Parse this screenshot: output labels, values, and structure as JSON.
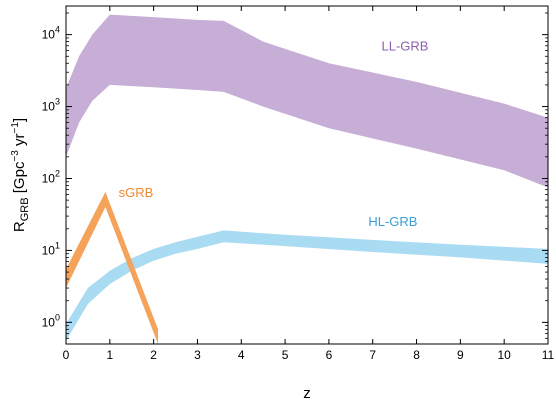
{
  "chart_data": {
    "type": "area",
    "title": "",
    "xlabel": "z",
    "ylabel": "R_GRB [Gpc^-3 yr^-1]",
    "ylabel_parts": {
      "main": "R",
      "sub": "GRB",
      "units_open": " [Gpc",
      "sup1": "−3",
      "units_mid": " yr",
      "sup2": "−1",
      "units_close": "]"
    },
    "xlim": [
      0,
      11
    ],
    "ylim": [
      0.5,
      25000
    ],
    "y_scale": "log",
    "grid": false,
    "x_ticks": [
      0,
      1,
      2,
      3,
      4,
      5,
      6,
      7,
      8,
      9,
      10,
      11
    ],
    "y_ticks": [
      {
        "value": 1,
        "base": "10",
        "exp": "0"
      },
      {
        "value": 10,
        "base": "10",
        "exp": "1"
      },
      {
        "value": 100,
        "base": "10",
        "exp": "2"
      },
      {
        "value": 1000,
        "base": "10",
        "exp": "3"
      },
      {
        "value": 10000,
        "base": "10",
        "exp": "4"
      }
    ],
    "series": [
      {
        "name": "LL-GRB",
        "color": "#c7aed6",
        "label_color": "#8e5fb0",
        "label_at": {
          "x": 7.2,
          "y": 6000
        },
        "x": [
          0,
          0.3,
          0.6,
          1.0,
          2.0,
          3.0,
          3.6,
          4.5,
          6.0,
          8.0,
          10.0,
          11.0
        ],
        "lower": [
          200,
          600,
          1200,
          2000,
          1850,
          1700,
          1600,
          1000,
          500,
          260,
          130,
          75
        ],
        "upper": [
          1800,
          5000,
          10000,
          19000,
          17500,
          16000,
          15500,
          8000,
          4000,
          2200,
          1100,
          700
        ]
      },
      {
        "name": "HL-GRB",
        "color": "#a9dcf3",
        "label_color": "#3a9fd4",
        "label_at": {
          "x": 6.9,
          "y": 22
        },
        "x": [
          0,
          0.5,
          1.0,
          1.5,
          2.0,
          2.5,
          3.0,
          3.6,
          5.0,
          7.0,
          9.0,
          11.0
        ],
        "lower": [
          0.55,
          1.8,
          3.4,
          5.2,
          7.2,
          9.0,
          10.5,
          13,
          11.5,
          9.5,
          8,
          6.5
        ],
        "upper": [
          0.95,
          3.0,
          5.2,
          7.8,
          10.5,
          13,
          15.5,
          19,
          16.5,
          14,
          12,
          10.5
        ]
      },
      {
        "name": "sGRB",
        "color": "#f5a35a",
        "label_color": "#f08a2e",
        "label_at": {
          "x": 1.2,
          "y": 55
        },
        "x": [
          0,
          0.9,
          2.1
        ],
        "lower": [
          3,
          40,
          0.5
        ],
        "upper": [
          5.5,
          65,
          0.8
        ]
      }
    ]
  }
}
